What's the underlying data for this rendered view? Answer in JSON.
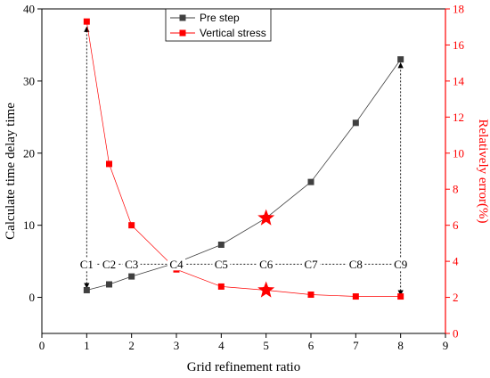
{
  "chart_data": {
    "type": "line",
    "xlabel": "Grid refinement ratio",
    "ylabel_left": "Calculate time delay time",
    "ylabel_right": "Relatively error(%)",
    "xlim": [
      0,
      9
    ],
    "ylim_left": [
      -5,
      40
    ],
    "ylim_right": [
      0,
      18
    ],
    "x_ticks": [
      0,
      1,
      2,
      3,
      4,
      5,
      6,
      7,
      8,
      9
    ],
    "y_left_ticks": [
      0,
      10,
      20,
      30,
      40
    ],
    "y_right_ticks": [
      0,
      2,
      4,
      6,
      8,
      10,
      12,
      14,
      16,
      18
    ],
    "grid": false,
    "legend_position": "top-center",
    "series": [
      {
        "name": "Pre step",
        "axis": "left",
        "color": "#404040",
        "marker": "square",
        "x": [
          1,
          1.5,
          2,
          3,
          4,
          5,
          6,
          7,
          8
        ],
        "y": [
          1.0,
          1.8,
          2.9,
          4.8,
          7.3,
          11.0,
          16.0,
          24.2,
          33.0
        ]
      },
      {
        "name": "Vertical stress",
        "axis": "right",
        "color": "#ff0000",
        "marker": "square",
        "x": [
          1,
          1.5,
          2,
          3,
          4,
          5,
          6,
          7,
          8
        ],
        "y": [
          17.3,
          9.4,
          6.0,
          3.55,
          2.6,
          2.4,
          2.15,
          2.05,
          2.05
        ]
      }
    ],
    "case_labels": {
      "labels": [
        "C1",
        "C2",
        "C3",
        "C4",
        "C5",
        "C6",
        "C7",
        "C8",
        "C9"
      ],
      "x": [
        1,
        1.5,
        2,
        3,
        4,
        5,
        6,
        7,
        8
      ],
      "y_left": 4.6
    },
    "highlights": [
      {
        "series": "Pre step",
        "x": 5,
        "y": 11.0,
        "axis": "left",
        "marker": "star",
        "color": "#ff0000"
      },
      {
        "series": "Vertical stress",
        "x": 5,
        "y": 2.4,
        "axis": "right",
        "marker": "star",
        "color": "#ff0000"
      }
    ],
    "annotations": [
      {
        "type": "vertical-arrow",
        "x": 1,
        "from_left": 4.6,
        "to_left": 1.3,
        "dir": "down"
      },
      {
        "type": "vertical-arrow",
        "x": 1,
        "from_left": 4.6,
        "to_left": 37.5,
        "dir": "up"
      },
      {
        "type": "vertical-arrow",
        "x": 8,
        "from_left": 4.6,
        "to_left": 32.5,
        "dir": "up"
      },
      {
        "type": "vertical-arrow",
        "x": 8,
        "from_left": 4.6,
        "to_left": 0.3,
        "dir": "down"
      },
      {
        "type": "horizontal-arrow",
        "y_left": 4.6,
        "from_x": 1,
        "to_x": 8,
        "dir": "right"
      }
    ]
  }
}
